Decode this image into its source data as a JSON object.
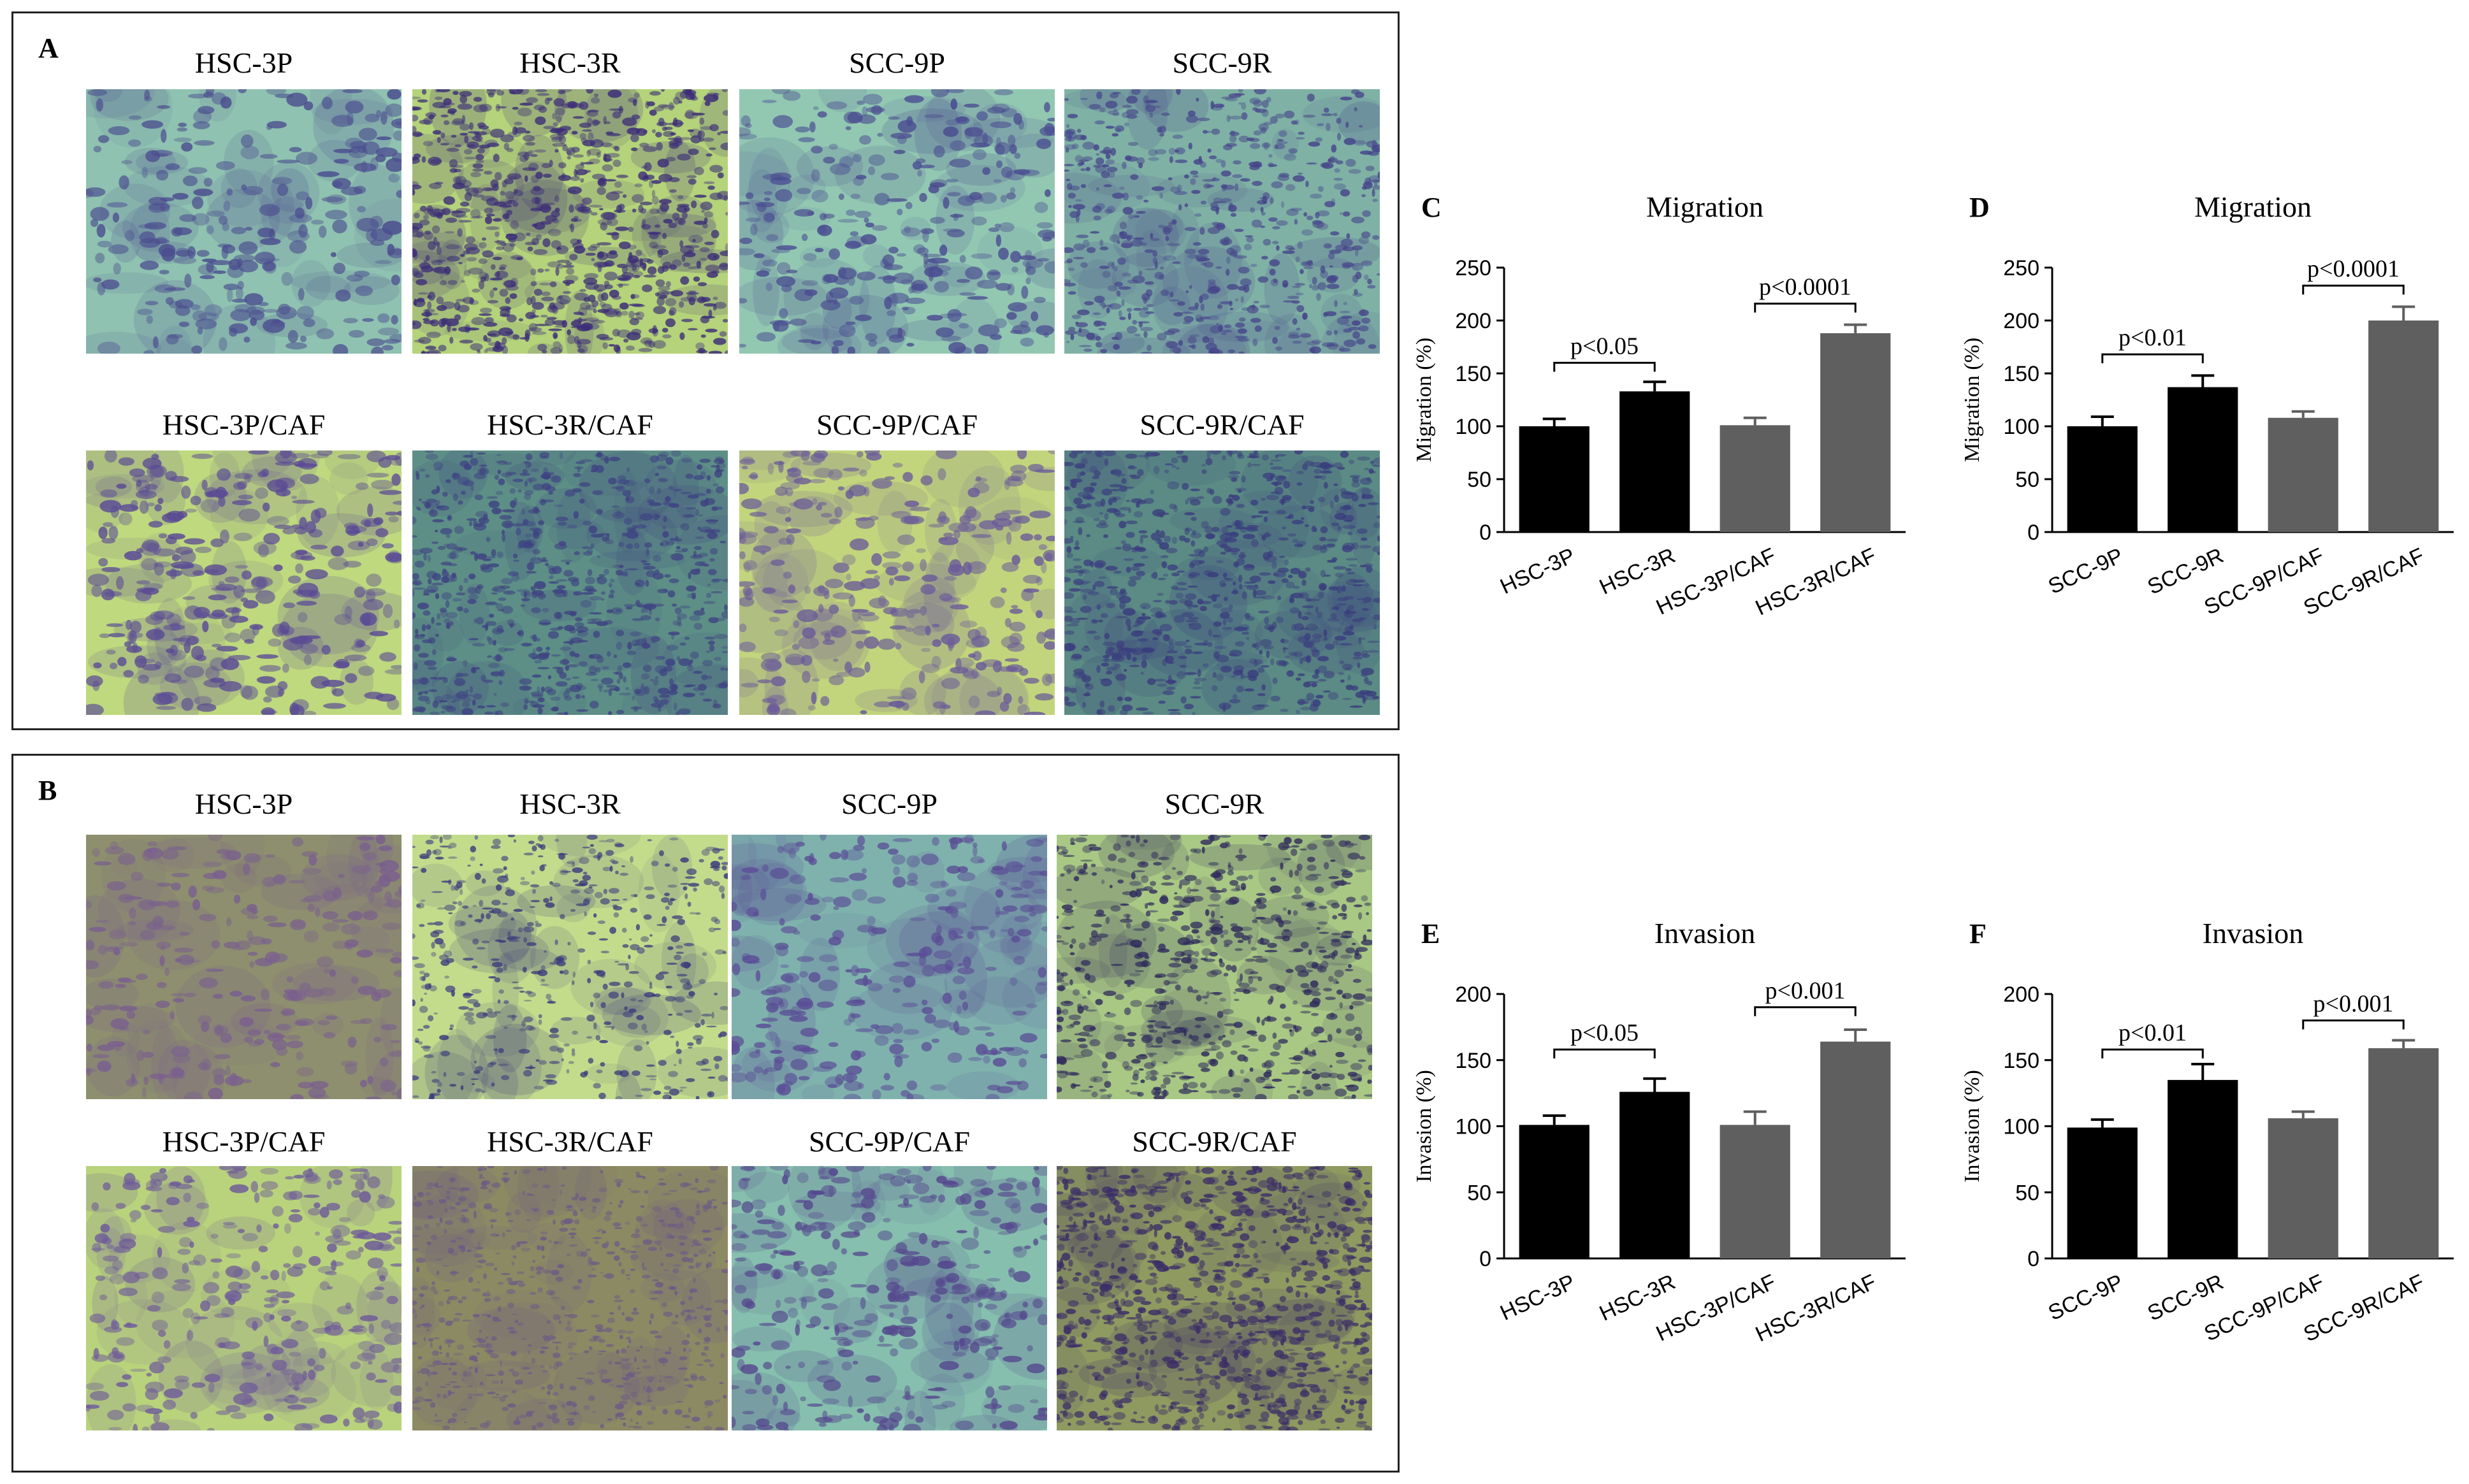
{
  "panels": {
    "A": {
      "letter": "A",
      "row1": [
        "HSC-3P",
        "HSC-3R",
        "SCC-9P",
        "SCC-9R"
      ],
      "row2": [
        "HSC-3P/CAF",
        "HSC-3R/CAF",
        "SCC-9P/CAF",
        "SCC-9R/CAF"
      ]
    },
    "B": {
      "letter": "B",
      "row1": [
        "HSC-3P",
        "HSC-3R",
        "SCC-9P",
        "SCC-9R"
      ],
      "row2": [
        "HSC-3P/CAF",
        "HSC-3R/CAF",
        "SCC-9P/CAF",
        "SCC-9R/CAF"
      ]
    }
  },
  "colors": {
    "black_bar": "#000000",
    "grey_bar": "#5f5f5f",
    "stain_purple": "#4b3a86",
    "membrane_teal": "#7fb9a8",
    "membrane_yellow": "#b9cf72"
  },
  "chart_data": [
    {
      "letter": "C",
      "type": "bar",
      "title": "Migration",
      "ylabel": "Migration (%)",
      "xlabel": "",
      "ylim": [
        0,
        250
      ],
      "yticks": [
        0,
        50,
        100,
        150,
        200,
        250
      ],
      "categories": [
        "HSC-3P",
        "HSC-3R",
        "HSC-3P/CAF",
        "HSC-3R/CAF"
      ],
      "values": [
        100,
        133,
        101,
        188
      ],
      "errors": [
        7,
        9,
        7,
        8
      ],
      "bar_colors": [
        "#000000",
        "#000000",
        "#5f5f5f",
        "#5f5f5f"
      ],
      "comparisons": [
        {
          "from": 0,
          "to": 1,
          "label": "p<0.05",
          "y": 160
        },
        {
          "from": 2,
          "to": 3,
          "label": "p<0.0001",
          "y": 216
        }
      ]
    },
    {
      "letter": "D",
      "type": "bar",
      "title": "Migration",
      "ylabel": "Migration (%)",
      "xlabel": "",
      "ylim": [
        0,
        250
      ],
      "yticks": [
        0,
        50,
        100,
        150,
        200,
        250
      ],
      "categories": [
        "SCC-9P",
        "SCC-9R",
        "SCC-9P/CAF",
        "SCC-9R/CAF"
      ],
      "values": [
        100,
        137,
        108,
        200
      ],
      "errors": [
        9,
        11,
        6,
        13
      ],
      "bar_colors": [
        "#000000",
        "#000000",
        "#5f5f5f",
        "#5f5f5f"
      ],
      "comparisons": [
        {
          "from": 0,
          "to": 1,
          "label": "p<0.01",
          "y": 168
        },
        {
          "from": 2,
          "to": 3,
          "label": "p<0.0001",
          "y": 233
        }
      ]
    },
    {
      "letter": "E",
      "type": "bar",
      "title": "Invasion",
      "ylabel": "Invasion (%)",
      "xlabel": "",
      "ylim": [
        0,
        200
      ],
      "yticks": [
        0,
        50,
        100,
        150,
        200
      ],
      "categories": [
        "HSC-3P",
        "HSC-3R",
        "HSC-3P/CAF",
        "HSC-3R/CAF"
      ],
      "values": [
        101,
        126,
        101,
        164
      ],
      "errors": [
        7,
        10,
        10,
        9
      ],
      "bar_colors": [
        "#000000",
        "#000000",
        "#5f5f5f",
        "#5f5f5f"
      ],
      "comparisons": [
        {
          "from": 0,
          "to": 1,
          "label": "p<0.05",
          "y": 158
        },
        {
          "from": 2,
          "to": 3,
          "label": "p<0.001",
          "y": 190
        }
      ]
    },
    {
      "letter": "F",
      "type": "bar",
      "title": "Invasion",
      "ylabel": "Invasion (%)",
      "xlabel": "",
      "ylim": [
        0,
        200
      ],
      "yticks": [
        0,
        50,
        100,
        150,
        200
      ],
      "categories": [
        "SCC-9P",
        "SCC-9R",
        "SCC-9P/CAF",
        "SCC-9R/CAF"
      ],
      "values": [
        99,
        135,
        106,
        159
      ],
      "errors": [
        6,
        12,
        5,
        6
      ],
      "bar_colors": [
        "#000000",
        "#000000",
        "#5f5f5f",
        "#5f5f5f"
      ],
      "comparisons": [
        {
          "from": 0,
          "to": 1,
          "label": "p<0.01",
          "y": 158
        },
        {
          "from": 2,
          "to": 3,
          "label": "p<0.001",
          "y": 180
        }
      ]
    }
  ]
}
